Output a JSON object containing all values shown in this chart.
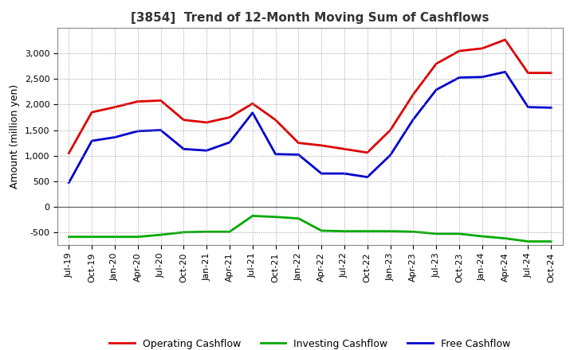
{
  "title": "[3854]  Trend of 12-Month Moving Sum of Cashflows",
  "ylabel": "Amount (million yen)",
  "xlabels": [
    "Jul-19",
    "Oct-19",
    "Jan-20",
    "Apr-20",
    "Jul-20",
    "Oct-20",
    "Jan-21",
    "Apr-21",
    "Jul-21",
    "Oct-21",
    "Jan-22",
    "Apr-22",
    "Jul-22",
    "Oct-22",
    "Jan-23",
    "Apr-23",
    "Jul-23",
    "Oct-23",
    "Jan-24",
    "Apr-24",
    "Jul-24",
    "Oct-24"
  ],
  "operating": [
    1050,
    1850,
    1950,
    2060,
    2080,
    1700,
    1650,
    1750,
    2020,
    1700,
    1250,
    1200,
    1130,
    1060,
    1500,
    2200,
    2800,
    3050,
    3100,
    3270,
    2620,
    2620
  ],
  "investing": [
    -590,
    -590,
    -590,
    -590,
    -550,
    -500,
    -490,
    -490,
    -180,
    -200,
    -230,
    -470,
    -480,
    -480,
    -480,
    -490,
    -530,
    -530,
    -580,
    -620,
    -680,
    -680
  ],
  "free": [
    470,
    1290,
    1360,
    1480,
    1500,
    1130,
    1100,
    1260,
    1840,
    1030,
    1020,
    650,
    650,
    580,
    1010,
    1710,
    2290,
    2530,
    2540,
    2640,
    1950,
    1940
  ],
  "operating_color": "#dd0000",
  "investing_color": "#00aa00",
  "free_color": "#0000cc",
  "ylim": [
    -750,
    3500
  ],
  "yticks": [
    -500,
    0,
    500,
    1000,
    1500,
    2000,
    2500,
    3000
  ],
  "background_color": "#ffffff",
  "grid_color": "#999999",
  "linewidth": 2.0,
  "title_fontsize": 11,
  "ylabel_fontsize": 9,
  "tick_fontsize": 8
}
